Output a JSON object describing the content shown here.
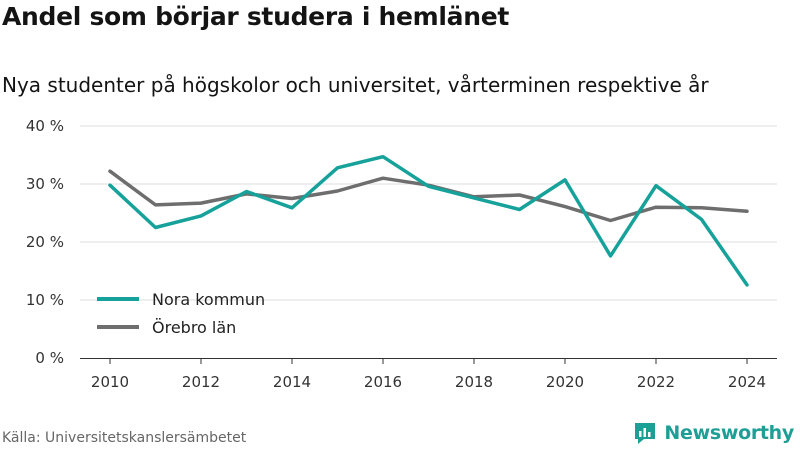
{
  "title": "Andel som börjar studera i hemlänet",
  "subtitle": "Nya studenter på högskolor och universitet, vårterminen respektive år",
  "source": "Källa: Universitetskanslersämbetet",
  "brand": {
    "name": "Newsworthy",
    "icon": "newsworthy-logo-icon"
  },
  "colors": {
    "nora": "#16a29a",
    "orebro": "#6e6e6e",
    "grid": "#dddddd",
    "axis": "#333333"
  },
  "chart_data": {
    "type": "line",
    "title": "",
    "xlabel": "",
    "ylabel": "",
    "x": [
      2010,
      2011,
      2012,
      2013,
      2014,
      2015,
      2016,
      2017,
      2018,
      2019,
      2020,
      2021,
      2022,
      2023,
      2024
    ],
    "xticks": [
      2010,
      2012,
      2014,
      2016,
      2018,
      2020,
      2022,
      2024
    ],
    "yticks": [
      0,
      10,
      20,
      30,
      40
    ],
    "ytick_labels": [
      "0 %",
      "10 %",
      "20 %",
      "30 %",
      "40 %"
    ],
    "ylim": [
      0,
      40
    ],
    "grid": true,
    "legend_position": "lower-left",
    "series": [
      {
        "name": "Nora kommun",
        "color": "#16a29a",
        "values": [
          29.8,
          22.5,
          24.5,
          28.7,
          25.9,
          32.8,
          34.7,
          29.6,
          27.6,
          25.6,
          30.7,
          17.6,
          29.7,
          23.9,
          12.6
        ]
      },
      {
        "name": "Örebro län",
        "color": "#6e6e6e",
        "values": [
          32.2,
          26.4,
          26.7,
          28.3,
          27.5,
          28.8,
          31.0,
          29.8,
          27.8,
          28.1,
          26.1,
          23.7,
          26.0,
          25.9,
          25.3
        ]
      }
    ]
  }
}
